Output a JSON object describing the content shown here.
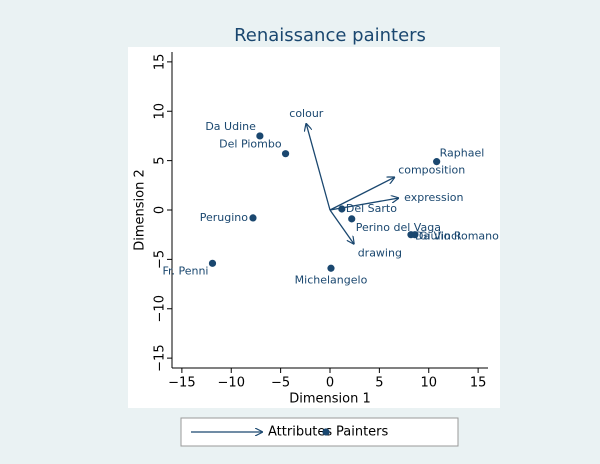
{
  "chart_data": {
    "type": "biplot",
    "title": "Renaissance painters",
    "x_label": "Dimension 1",
    "y_label": "Dimension 2",
    "xlim": [
      -16,
      16
    ],
    "ylim": [
      -16,
      16
    ],
    "xticks": [
      {
        "value": -15,
        "label": "−15"
      },
      {
        "value": -10,
        "label": "−10"
      },
      {
        "value": -5,
        "label": "−5"
      },
      0,
      5,
      10,
      15
    ],
    "yticks": [
      {
        "value": -15,
        "label": "−15"
      },
      {
        "value": -10,
        "label": "−10"
      },
      {
        "value": -5,
        "label": "−5"
      },
      0,
      5,
      10,
      15
    ],
    "color": "#1a476f",
    "series": [
      {
        "name": "Attributes",
        "kind": "arrow",
        "labels": [
          "colour",
          "composition",
          "expression",
          "drawing"
        ],
        "x": [
          -2.4,
          6.5,
          6.9,
          2.4
        ],
        "values": [
          8.7,
          3.3,
          1.2,
          -3.4
        ]
      },
      {
        "name": "Painters",
        "kind": "point",
        "labels": [
          "Da Udine",
          "Del Piombo",
          "Raphael",
          "Del Sarto",
          "Perino del Vaga",
          "Da Vinci",
          "Giulio Romano",
          "Perugino",
          "Fr. Penni",
          "Michelangelo"
        ],
        "x": [
          -7.1,
          -4.5,
          10.8,
          1.2,
          2.2,
          8.2,
          8.6,
          -7.8,
          -11.9,
          0.1
        ],
        "values": [
          7.5,
          5.7,
          4.9,
          0.1,
          -0.9,
          -2.5,
          -2.5,
          -0.8,
          -5.4,
          -5.9
        ]
      }
    ]
  }
}
